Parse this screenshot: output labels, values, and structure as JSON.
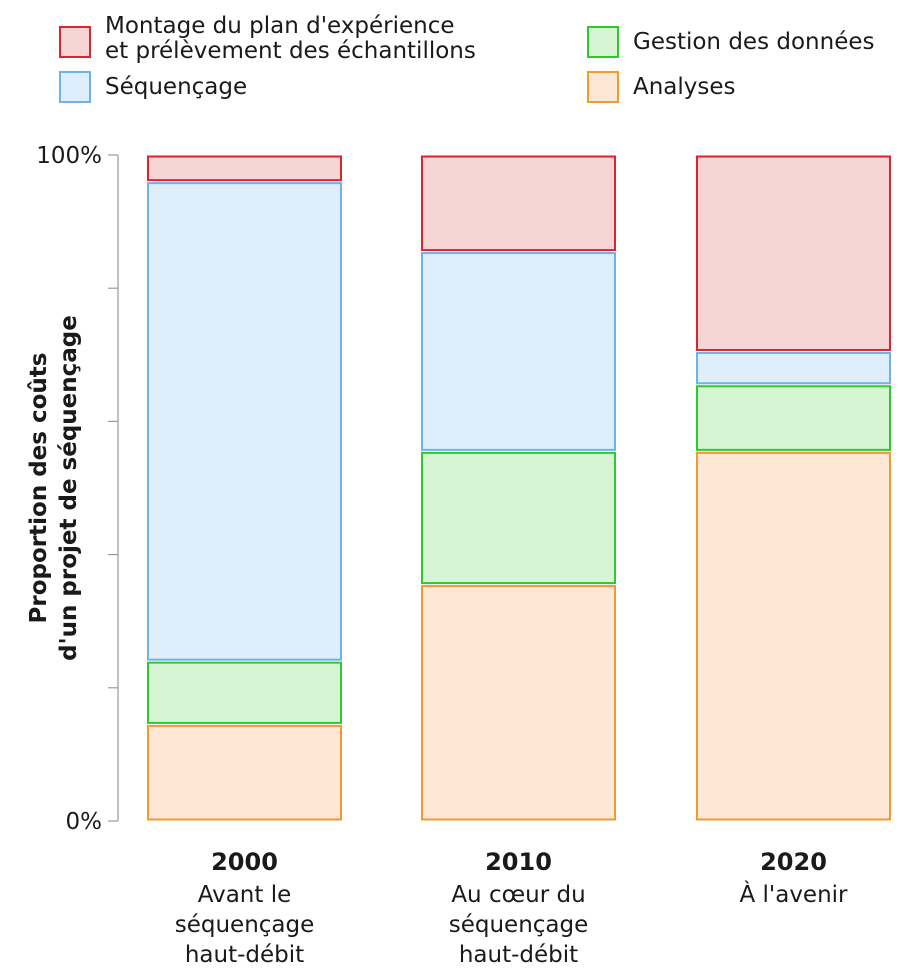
{
  "chart_data": {
    "type": "bar",
    "stacked": true,
    "orientation": "vertical",
    "ylabel_lines": [
      "Proportion des coûts",
      "d'un projet de séquençage"
    ],
    "ylim": [
      0,
      100
    ],
    "yticks": [
      0,
      20,
      40,
      60,
      80,
      100
    ],
    "ytick_labels": [
      "0%",
      "",
      "",
      "",
      "",
      "100%"
    ],
    "legend_position": "top",
    "categories": [
      {
        "year": "2000",
        "sub": [
          "Avant le",
          "séquençage",
          "haut-débit"
        ]
      },
      {
        "year": "2010",
        "sub": [
          "Au cœur du",
          "séquençage",
          "haut-débit"
        ]
      },
      {
        "year": "2020",
        "sub": [
          "À l'avenir"
        ]
      }
    ],
    "series": [
      {
        "name": "Analyses",
        "values": [
          14.5,
          35.5,
          55.5
        ],
        "stroke": "#f39a2e",
        "fill": "#fee7d5"
      },
      {
        "name": "Gestion des données",
        "values": [
          9.5,
          20,
          10
        ],
        "stroke": "#2ec92e",
        "fill": "#d6f5d2"
      },
      {
        "name": "Séquençage",
        "values": [
          72,
          30,
          5
        ],
        "stroke": "#6fb2ea",
        "fill": "#deeefb"
      },
      {
        "name": "Montage du plan d'expérience et prélèvement des échantillons",
        "values": [
          4,
          14.5,
          29.5
        ],
        "stroke": "#d9252b",
        "fill": "#f7d5d5"
      }
    ],
    "legend": [
      {
        "series": 3,
        "lines": [
          "Montage du plan d'expérience",
          "et prélèvement des échantillons"
        ]
      },
      {
        "series": 2,
        "lines": [
          "Séquençage"
        ]
      },
      {
        "series": 1,
        "lines": [
          "Gestion des données"
        ]
      },
      {
        "series": 0,
        "lines": [
          "Analyses"
        ]
      }
    ]
  }
}
